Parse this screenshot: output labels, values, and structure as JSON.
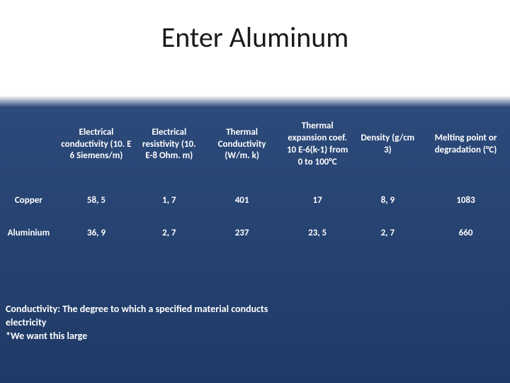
{
  "title": "Enter Aluminum",
  "table": {
    "type": "table",
    "background_gradient_top": "#ffffff",
    "background_gradient_bottom": "#1f3a66",
    "text_color": "#ffffff",
    "header_fontsize": 13,
    "cell_fontsize": 13,
    "font_weight": "bold",
    "columns": [
      "",
      "Electrical conductivity (10. E 6 Siemens/m)",
      "Electrical resistivity (10. E-8 Ohm. m)",
      "Thermal Conductivity (W/m. k)",
      "Thermal expansion coef. 10 E-6(k-1) from 0 to 100°C",
      "Density (g/cm 3)",
      "Melting point or degradation (°C)"
    ],
    "rows": [
      {
        "label": "Copper",
        "cells": [
          "58, 5",
          "1, 7",
          "401",
          "17",
          "8, 9",
          "1083"
        ]
      },
      {
        "label": "Aluminium",
        "cells": [
          "36, 9",
          "2, 7",
          "237",
          "23, 5",
          "2, 7",
          "660"
        ]
      }
    ]
  },
  "note": {
    "line1": "Conductivity: The degree to which a specified material conducts electricity",
    "line2": "*We want this large"
  }
}
